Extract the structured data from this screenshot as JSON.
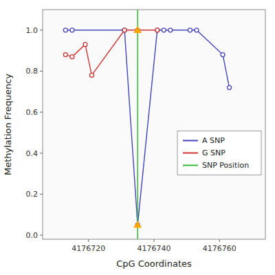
{
  "chart_data": {
    "type": "line",
    "xlabel": "CpG Coordinates",
    "ylabel": "Methylation Frequency",
    "series": [
      {
        "name": "A SNP",
        "color": "#4444bb",
        "marker": "circle",
        "line_style": "solid",
        "x": [
          4176713,
          4176715,
          4176731,
          4176735,
          4176741,
          4176743,
          4176745,
          4176751,
          4176753,
          4176761,
          4176763
        ],
        "values": [
          1.0,
          1.0,
          1.0,
          0.05,
          1.0,
          1.0,
          1.0,
          1.0,
          1.0,
          0.88,
          0.72
        ]
      },
      {
        "name": "G SNP",
        "color": "#cc3333",
        "marker": "circle",
        "line_style": "solid",
        "x": [
          4176713,
          4176715,
          4176719,
          4176721,
          4176731,
          4176735,
          4176741
        ],
        "values": [
          0.88,
          0.87,
          0.93,
          0.78,
          1.0,
          1.0,
          1.0
        ]
      },
      {
        "name": "SNP Position",
        "type": "vline",
        "color": "#33bb33",
        "x": [
          4176735
        ]
      }
    ],
    "markers": {
      "x": [
        4176735,
        4176735
      ],
      "values": [
        1.0,
        0.05
      ],
      "color": "#FFA500",
      "marker": "triangle"
    },
    "xlim": [
      4176706,
      4176774
    ],
    "ylim": [
      -0.02,
      1.1
    ],
    "xticks": [
      4176720,
      4176740,
      4176760
    ],
    "yticks": [
      {
        "value": 0.0,
        "label": "0.0"
      },
      0.2,
      0.4,
      0.6,
      0.8,
      {
        "value": 1.0,
        "label": "1.0"
      }
    ],
    "legend": "lower right"
  }
}
